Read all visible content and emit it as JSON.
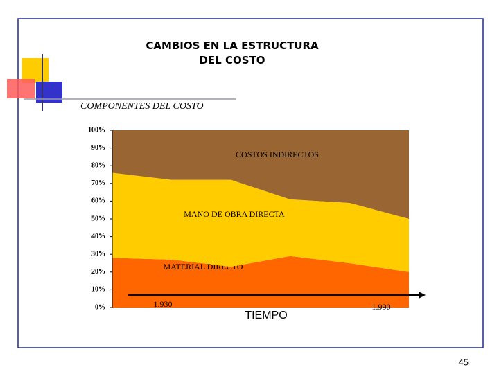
{
  "chart_data": {
    "type": "area",
    "title": "CAMBIOS EN LA ESTRUCTURA DEL COSTO",
    "subtitle": "COMPONENTES DEL COSTO",
    "x_label": "TIEMPO",
    "categories": [
      "1.930",
      null,
      null,
      null,
      null,
      "1.990"
    ],
    "stacked": true,
    "series": [
      {
        "name": "MATERIAL DIRECTO",
        "color": "#ff6600",
        "values": [
          28,
          27,
          23,
          29,
          25,
          20
        ]
      },
      {
        "name": "MANO DE OBRA DIRECTA",
        "color": "#ffcc00",
        "values": [
          48,
          45,
          49,
          32,
          34,
          30
        ]
      },
      {
        "name": "COSTOS INDIRECTOS",
        "color": "#996633",
        "values": [
          24,
          28,
          28,
          39,
          41,
          50
        ]
      }
    ],
    "ylim": [
      0,
      100
    ],
    "yticks": [
      {
        "value": 0,
        "label": "0%"
      },
      {
        "value": 10,
        "label": "10%"
      },
      {
        "value": 20,
        "label": "20%"
      },
      {
        "value": 30,
        "label": "30%"
      },
      {
        "value": 40,
        "label": "40%"
      },
      {
        "value": 50,
        "label": "50%"
      },
      {
        "value": 60,
        "label": "60%"
      },
      {
        "value": 70,
        "label": "70%"
      },
      {
        "value": 80,
        "label": "80%"
      },
      {
        "value": 90,
        "label": "90%"
      },
      {
        "value": 100,
        "label": "100%"
      }
    ],
    "grid": false
  },
  "page_number": "45"
}
